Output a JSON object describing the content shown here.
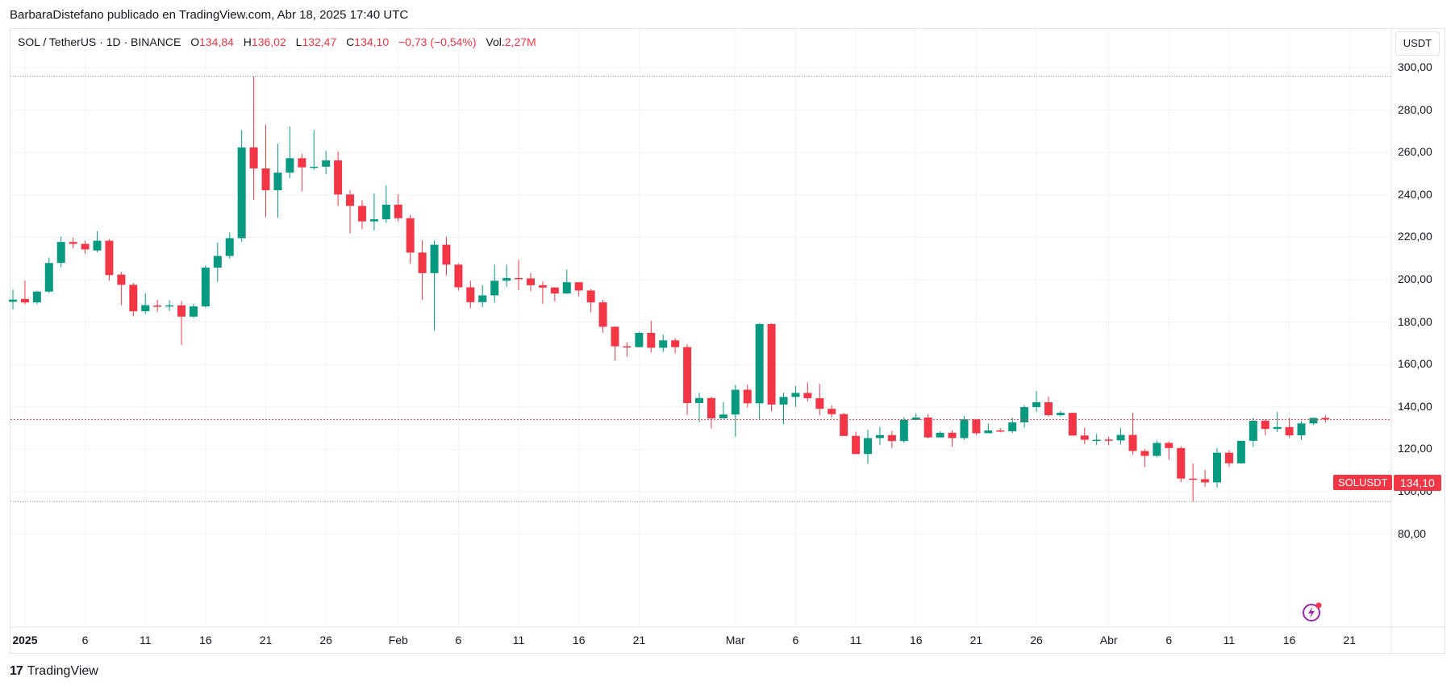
{
  "header": {
    "publisher": "BarbaraDistefano publicado en TradingView.com, Abr 18, 2025 17:40 UTC"
  },
  "legend": {
    "symbol": "SOL / TetherUS · 1D · BINANCE",
    "o_label": "O",
    "o_value": "134,84",
    "h_label": "H",
    "h_value": "136,02",
    "l_label": "L",
    "l_value": "132,47",
    "c_label": "C",
    "c_value": "134,10",
    "change": "−0,73 (−0,54%)",
    "vol_label": "Vol.",
    "vol_value": "2,27M"
  },
  "currency_button": "USDT",
  "last_price": {
    "symbol": "SOLUSDT",
    "value": "134,10",
    "color": "#f23645"
  },
  "footer": {
    "brand": "TradingView"
  },
  "colors": {
    "up": "#089981",
    "down": "#f23645",
    "grid": "#f0f3fa"
  },
  "chart_data": {
    "type": "candlestick",
    "ylim": [
      75,
      310
    ],
    "y_ticks": [
      "80,00",
      "100,00",
      "120,00",
      "140,00",
      "160,00",
      "180,00",
      "200,00",
      "220,00",
      "240,00",
      "260,00",
      "280,00",
      "300,00"
    ],
    "y_tick_values": [
      80,
      100,
      120,
      140,
      160,
      180,
      200,
      220,
      240,
      260,
      280,
      300
    ],
    "x_tick_labels": [
      {
        "label": "2025",
        "index": 1,
        "bold": true
      },
      {
        "label": "6",
        "index": 6
      },
      {
        "label": "11",
        "index": 11
      },
      {
        "label": "16",
        "index": 16
      },
      {
        "label": "21",
        "index": 21
      },
      {
        "label": "26",
        "index": 26
      },
      {
        "label": "Feb",
        "index": 32
      },
      {
        "label": "6",
        "index": 37
      },
      {
        "label": "11",
        "index": 42
      },
      {
        "label": "16",
        "index": 47
      },
      {
        "label": "21",
        "index": 52
      },
      {
        "label": "Mar",
        "index": 60
      },
      {
        "label": "6",
        "index": 65
      },
      {
        "label": "11",
        "index": 70
      },
      {
        "label": "16",
        "index": 75
      },
      {
        "label": "21",
        "index": 80
      },
      {
        "label": "26",
        "index": 85
      },
      {
        "label": "Abr",
        "index": 91
      },
      {
        "label": "6",
        "index": 96
      },
      {
        "label": "11",
        "index": 101
      },
      {
        "label": "16",
        "index": 106
      },
      {
        "label": "21",
        "index": 111
      }
    ],
    "range_lines": [
      296,
      95.3
    ],
    "last_price": 134.1,
    "candles": [
      [
        189.6,
        190.6,
        195.3,
        186.1
      ],
      [
        190.9,
        189.3,
        199.6,
        188.4
      ],
      [
        189.3,
        194.4,
        194.8,
        188.4
      ],
      [
        194.4,
        207.9,
        210.5,
        193.7
      ],
      [
        207.9,
        217.8,
        220.3,
        205.9
      ],
      [
        217.8,
        216.9,
        219.8,
        214.8
      ],
      [
        216.9,
        214.3,
        218.4,
        212.2
      ],
      [
        213.8,
        218.4,
        222.9,
        212.9
      ],
      [
        218.4,
        202.2,
        219.2,
        199.5
      ],
      [
        202.4,
        197.6,
        203.7,
        188.1
      ],
      [
        197.6,
        185.1,
        198.5,
        182.7
      ],
      [
        185.1,
        188.0,
        193.5,
        183.9
      ],
      [
        187.8,
        187.6,
        190.5,
        184.8
      ],
      [
        187.6,
        187.9,
        190.3,
        185.3
      ],
      [
        187.9,
        182.6,
        190.0,
        169.2
      ],
      [
        182.6,
        187.4,
        188.7,
        181.9
      ],
      [
        187.4,
        205.7,
        206.7,
        186.8
      ],
      [
        205.7,
        211.2,
        217.5,
        199.0
      ],
      [
        211.2,
        219.6,
        222.3,
        209.9
      ],
      [
        219.6,
        262.4,
        270.5,
        217.8
      ],
      [
        262.4,
        252.5,
        295.9,
        237.7
      ],
      [
        252.5,
        242.2,
        273.1,
        229.5
      ],
      [
        242.2,
        250.5,
        264.2,
        229.3
      ],
      [
        250.5,
        257.3,
        272.3,
        248.0
      ],
      [
        257.3,
        253.0,
        259.4,
        241.6
      ],
      [
        253.0,
        253.3,
        270.6,
        251.8
      ],
      [
        253.3,
        256.3,
        260.7,
        249.8
      ],
      [
        256.3,
        240.2,
        260.4,
        234.8
      ],
      [
        240.2,
        234.8,
        242.3,
        221.8
      ],
      [
        234.8,
        227.5,
        237.5,
        223.8
      ],
      [
        227.5,
        228.5,
        240.8,
        223.2
      ],
      [
        228.5,
        235.4,
        244.4,
        226.8
      ],
      [
        235.4,
        229.0,
        240.3,
        227.3
      ],
      [
        229.0,
        212.8,
        230.5,
        207.5
      ],
      [
        212.8,
        203.1,
        218.6,
        190.4
      ],
      [
        203.1,
        216.5,
        218.5,
        176.0
      ],
      [
        216.5,
        207.1,
        220.3,
        202.0
      ],
      [
        207.1,
        196.4,
        207.7,
        194.9
      ],
      [
        196.4,
        189.4,
        199.5,
        186.6
      ],
      [
        189.4,
        192.6,
        197.4,
        187.1
      ],
      [
        192.6,
        199.5,
        207.1,
        189.2
      ],
      [
        199.5,
        200.8,
        207.1,
        196.7
      ],
      [
        200.8,
        200.6,
        209.3,
        195.1
      ],
      [
        200.6,
        197.4,
        203.2,
        194.6
      ],
      [
        197.4,
        196.3,
        199.1,
        188.7
      ],
      [
        196.3,
        193.5,
        196.5,
        189.7
      ],
      [
        193.5,
        198.8,
        204.7,
        193.3
      ],
      [
        198.8,
        194.9,
        198.9,
        192.1
      ],
      [
        194.9,
        189.3,
        195.6,
        184.6
      ],
      [
        189.3,
        177.8,
        190.5,
        175.0
      ],
      [
        177.8,
        168.6,
        178.0,
        162.0
      ],
      [
        168.6,
        168.2,
        170.4,
        163.6
      ],
      [
        168.2,
        174.9,
        175.5,
        168.1
      ],
      [
        174.9,
        167.9,
        180.7,
        165.7
      ],
      [
        167.9,
        171.4,
        174.1,
        165.9
      ],
      [
        171.4,
        168.2,
        172.5,
        165.2
      ],
      [
        168.2,
        141.8,
        169.6,
        136.1
      ],
      [
        141.8,
        144.2,
        146.6,
        132.8
      ],
      [
        144.2,
        134.6,
        144.8,
        129.9
      ],
      [
        134.6,
        136.4,
        142.3,
        134.4
      ],
      [
        136.4,
        148.1,
        150.4,
        125.9
      ],
      [
        148.1,
        141.7,
        150.5,
        139.8
      ],
      [
        141.7,
        179.1,
        179.5,
        134.3
      ],
      [
        179.1,
        141.1,
        179.5,
        137.9
      ],
      [
        141.1,
        144.7,
        146.7,
        131.8
      ],
      [
        144.7,
        146.6,
        149.8,
        140.0
      ],
      [
        146.6,
        144.1,
        151.5,
        142.6
      ],
      [
        144.1,
        139.1,
        150.8,
        136.0
      ],
      [
        139.1,
        136.6,
        140.7,
        134.9
      ],
      [
        136.6,
        126.3,
        137.2,
        126.3
      ],
      [
        126.3,
        117.8,
        128.3,
        117.7
      ],
      [
        117.8,
        125.3,
        129.3,
        113.1
      ],
      [
        125.3,
        126.7,
        130.6,
        122.1
      ],
      [
        126.7,
        123.9,
        128.7,
        120.6
      ],
      [
        123.9,
        133.9,
        135.2,
        123.0
      ],
      [
        133.9,
        135.0,
        137.0,
        133.7
      ],
      [
        135.0,
        125.6,
        136.7,
        125.1
      ],
      [
        125.6,
        127.8,
        128.5,
        126.5
      ],
      [
        127.8,
        125.3,
        128.9,
        121.2
      ],
      [
        125.3,
        134.1,
        135.8,
        124.5
      ],
      [
        134.1,
        127.6,
        134.3,
        126.7
      ],
      [
        127.6,
        128.9,
        132.2,
        127.8
      ],
      [
        128.9,
        128.5,
        130.0,
        128.0
      ],
      [
        128.5,
        132.7,
        134.9,
        127.7
      ],
      [
        132.7,
        139.9,
        140.9,
        130.2
      ],
      [
        139.9,
        142.2,
        147.5,
        137.6
      ],
      [
        142.2,
        136.1,
        144.8,
        135.5
      ],
      [
        136.1,
        137.2,
        138.1,
        135.5
      ],
      [
        137.2,
        126.5,
        137.4,
        126.3
      ],
      [
        126.5,
        124.5,
        130.2,
        122.4
      ],
      [
        124.5,
        124.5,
        127.3,
        121.9
      ],
      [
        124.6,
        124.2,
        126.0,
        121.9
      ],
      [
        124.2,
        126.8,
        130.0,
        122.3
      ],
      [
        126.8,
        119.2,
        137.3,
        117.4
      ],
      [
        119.2,
        116.9,
        120.0,
        111.6
      ],
      [
        116.9,
        123.0,
        124.1,
        116.2
      ],
      [
        123.0,
        120.6,
        123.8,
        115.0
      ],
      [
        120.6,
        106.2,
        121.4,
        104.5
      ],
      [
        106.2,
        105.9,
        113.3,
        95.3
      ],
      [
        105.9,
        104.4,
        110.3,
        102.4
      ],
      [
        104.4,
        118.4,
        120.6,
        102.0
      ],
      [
        118.4,
        113.4,
        119.5,
        111.8
      ],
      [
        113.4,
        124.0,
        124.1,
        113.1
      ],
      [
        124.0,
        133.5,
        134.9,
        121.1
      ],
      [
        133.5,
        129.6,
        134.2,
        126.6
      ],
      [
        129.6,
        130.5,
        137.6,
        128.1
      ],
      [
        130.5,
        126.6,
        134.8,
        125.5
      ],
      [
        126.6,
        132.2,
        133.3,
        124.4
      ],
      [
        132.2,
        134.8,
        135.0,
        131.6
      ],
      [
        134.8,
        134.1,
        136.0,
        132.5
      ]
    ]
  }
}
